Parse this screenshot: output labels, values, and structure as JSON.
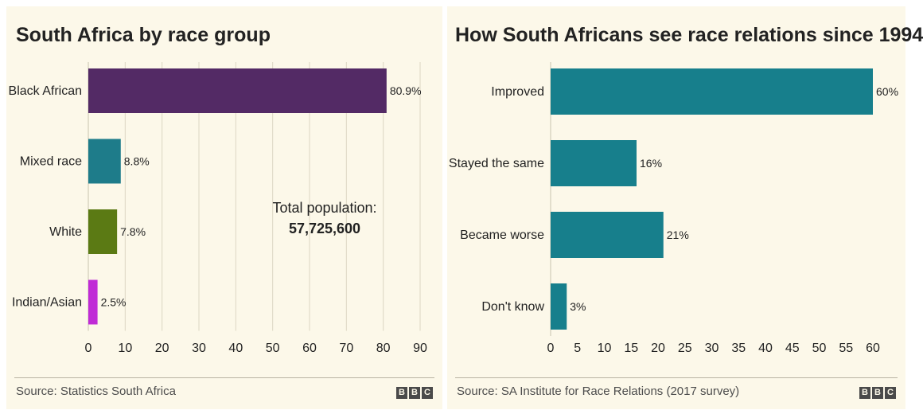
{
  "chart_data": [
    {
      "type": "bar",
      "orientation": "horizontal",
      "title": "South Africa by race group",
      "categories": [
        "Black African",
        "Mixed race",
        "White",
        "Indian/Asian"
      ],
      "values": [
        80.9,
        8.8,
        7.8,
        2.5
      ],
      "value_labels": [
        "80.9%",
        "8.8%",
        "7.8%",
        "2.5%"
      ],
      "colors": [
        "#532a65",
        "#1e7c8a",
        "#5b7a14",
        "#c02bd6"
      ],
      "xlim": [
        0,
        90
      ],
      "xticks": [
        0,
        10,
        20,
        30,
        40,
        50,
        60,
        70,
        80,
        90
      ],
      "grid": true,
      "annotation": {
        "label": "Total population:",
        "value": "57,725,600"
      },
      "source": "Source: Statistics South Africa"
    },
    {
      "type": "bar",
      "orientation": "horizontal",
      "title": "How South Africans see race relations since 1994",
      "categories": [
        "Improved",
        "Stayed the same",
        "Became worse",
        "Don't know"
      ],
      "values": [
        60,
        16,
        21,
        3
      ],
      "value_labels": [
        "60%",
        "16%",
        "21%",
        "3%"
      ],
      "colors": [
        "#177f8c",
        "#177f8c",
        "#177f8c",
        "#177f8c"
      ],
      "xlim": [
        0,
        60
      ],
      "xticks": [
        0,
        5,
        10,
        15,
        20,
        25,
        30,
        35,
        40,
        45,
        50,
        55,
        60
      ],
      "grid": false,
      "source": "Source: SA Institute for Race Relations (2017 survey)"
    }
  ],
  "branding": {
    "letters": [
      "B",
      "B",
      "C"
    ]
  }
}
